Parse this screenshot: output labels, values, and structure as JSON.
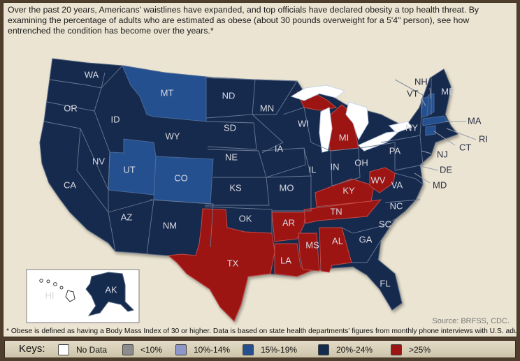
{
  "intro": "Over the past 20 years, Americans' waistlines have expanded, and top officials have declared obesity a top health threat. By examining the percentage of adults who are estimated as obese (about 30 pounds overweight for a 5'4\" person), see how entrenched the condition has become over the years.*",
  "source": "Source: BRFSS, CDC.",
  "footnote": "* Obese is defined as having a Body Mass Index of 30 or higher. Data is based on state health departments' figures from monthly phone interviews with U.S. adults.",
  "keys": {
    "title": "Keys:",
    "items": [
      {
        "label": "No Data",
        "color": "#ffffff"
      },
      {
        "label": "<10%",
        "color": "#8c8c8c"
      },
      {
        "label": "10%-14%",
        "color": "#8d97c9"
      },
      {
        "label": "15%-19%",
        "color": "#24508f"
      },
      {
        "label": "20%-24%",
        "color": "#152b4e"
      },
      {
        "label": ">25%",
        "color": "#9c1512"
      }
    ]
  },
  "colors": {
    "band_20_24": "#152b4e",
    "band_15_19": "#24508f",
    "band_25_plus": "#9c1512",
    "water": "#ffffff"
  },
  "map": {
    "states": [
      {
        "abbr": "WA",
        "band": "20%-24%"
      },
      {
        "abbr": "OR",
        "band": "20%-24%"
      },
      {
        "abbr": "CA",
        "band": "20%-24%"
      },
      {
        "abbr": "ID",
        "band": "20%-24%"
      },
      {
        "abbr": "NV",
        "band": "20%-24%"
      },
      {
        "abbr": "MT",
        "band": "15%-19%"
      },
      {
        "abbr": "WY",
        "band": "20%-24%"
      },
      {
        "abbr": "UT",
        "band": "15%-19%"
      },
      {
        "abbr": "CO",
        "band": "15%-19%"
      },
      {
        "abbr": "AZ",
        "band": "20%-24%"
      },
      {
        "abbr": "NM",
        "band": "20%-24%"
      },
      {
        "abbr": "ND",
        "band": "20%-24%"
      },
      {
        "abbr": "SD",
        "band": "20%-24%"
      },
      {
        "abbr": "NE",
        "band": "20%-24%"
      },
      {
        "abbr": "KS",
        "band": "20%-24%"
      },
      {
        "abbr": "OK",
        "band": "20%-24%"
      },
      {
        "abbr": "TX",
        "band": ">25%"
      },
      {
        "abbr": "MN",
        "band": "20%-24%"
      },
      {
        "abbr": "IA",
        "band": "20%-24%"
      },
      {
        "abbr": "MO",
        "band": "20%-24%"
      },
      {
        "abbr": "AR",
        "band": ">25%"
      },
      {
        "abbr": "LA",
        "band": ">25%"
      },
      {
        "abbr": "WI",
        "band": "20%-24%"
      },
      {
        "abbr": "IL",
        "band": "20%-24%"
      },
      {
        "abbr": "MI",
        "band": ">25%"
      },
      {
        "abbr": "IN",
        "band": "20%-24%"
      },
      {
        "abbr": "OH",
        "band": "20%-24%"
      },
      {
        "abbr": "KY",
        "band": ">25%"
      },
      {
        "abbr": "TN",
        "band": ">25%"
      },
      {
        "abbr": "MS",
        "band": ">25%"
      },
      {
        "abbr": "AL",
        "band": ">25%"
      },
      {
        "abbr": "GA",
        "band": "20%-24%"
      },
      {
        "abbr": "FL",
        "band": "20%-24%"
      },
      {
        "abbr": "SC",
        "band": "20%-24%"
      },
      {
        "abbr": "NC",
        "band": "20%-24%"
      },
      {
        "abbr": "VA",
        "band": "20%-24%"
      },
      {
        "abbr": "WV",
        "band": ">25%"
      },
      {
        "abbr": "PA",
        "band": "20%-24%"
      },
      {
        "abbr": "NY",
        "band": "20%-24%"
      },
      {
        "abbr": "ME",
        "band": "20%-24%"
      },
      {
        "abbr": "NH",
        "band": "15%-19%"
      },
      {
        "abbr": "VT",
        "band": "15%-19%"
      },
      {
        "abbr": "MA",
        "band": "15%-19%"
      },
      {
        "abbr": "RI",
        "band": "20%-24%"
      },
      {
        "abbr": "CT",
        "band": "15%-19%"
      },
      {
        "abbr": "NJ",
        "band": "20%-24%"
      },
      {
        "abbr": "DE",
        "band": "20%-24%"
      },
      {
        "abbr": "MD",
        "band": "20%-24%"
      },
      {
        "abbr": "HI",
        "band": "No Data"
      },
      {
        "abbr": "AK",
        "band": "20%-24%"
      }
    ]
  }
}
